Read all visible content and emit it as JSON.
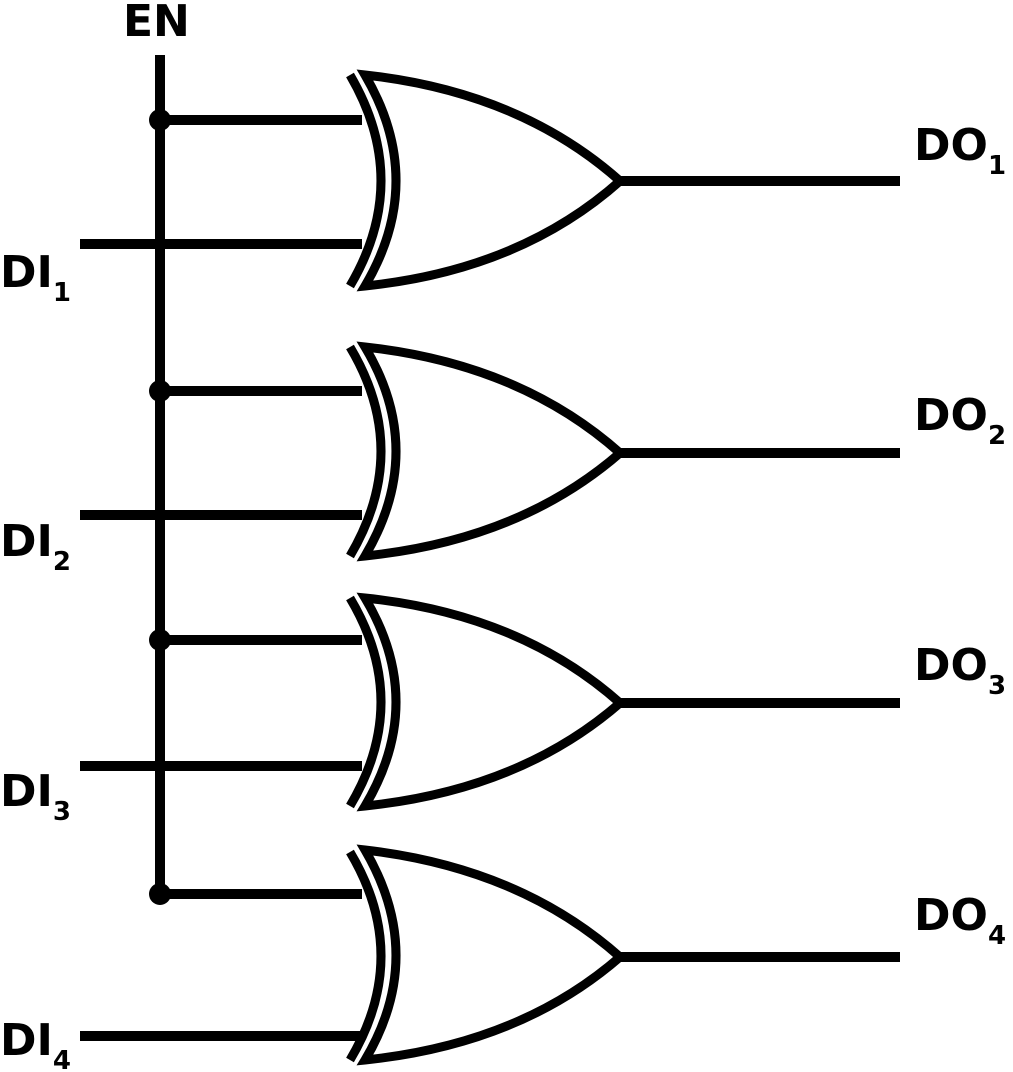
{
  "enable_label": "EN",
  "inputs": [
    {
      "name": "DI",
      "sub": "1"
    },
    {
      "name": "DI",
      "sub": "2"
    },
    {
      "name": "DI",
      "sub": "3"
    },
    {
      "name": "DI",
      "sub": "4"
    }
  ],
  "outputs": [
    {
      "name": "DO",
      "sub": "1"
    },
    {
      "name": "DO",
      "sub": "2"
    },
    {
      "name": "DO",
      "sub": "3"
    },
    {
      "name": "DO",
      "sub": "4"
    }
  ],
  "gate_type": "XOR"
}
